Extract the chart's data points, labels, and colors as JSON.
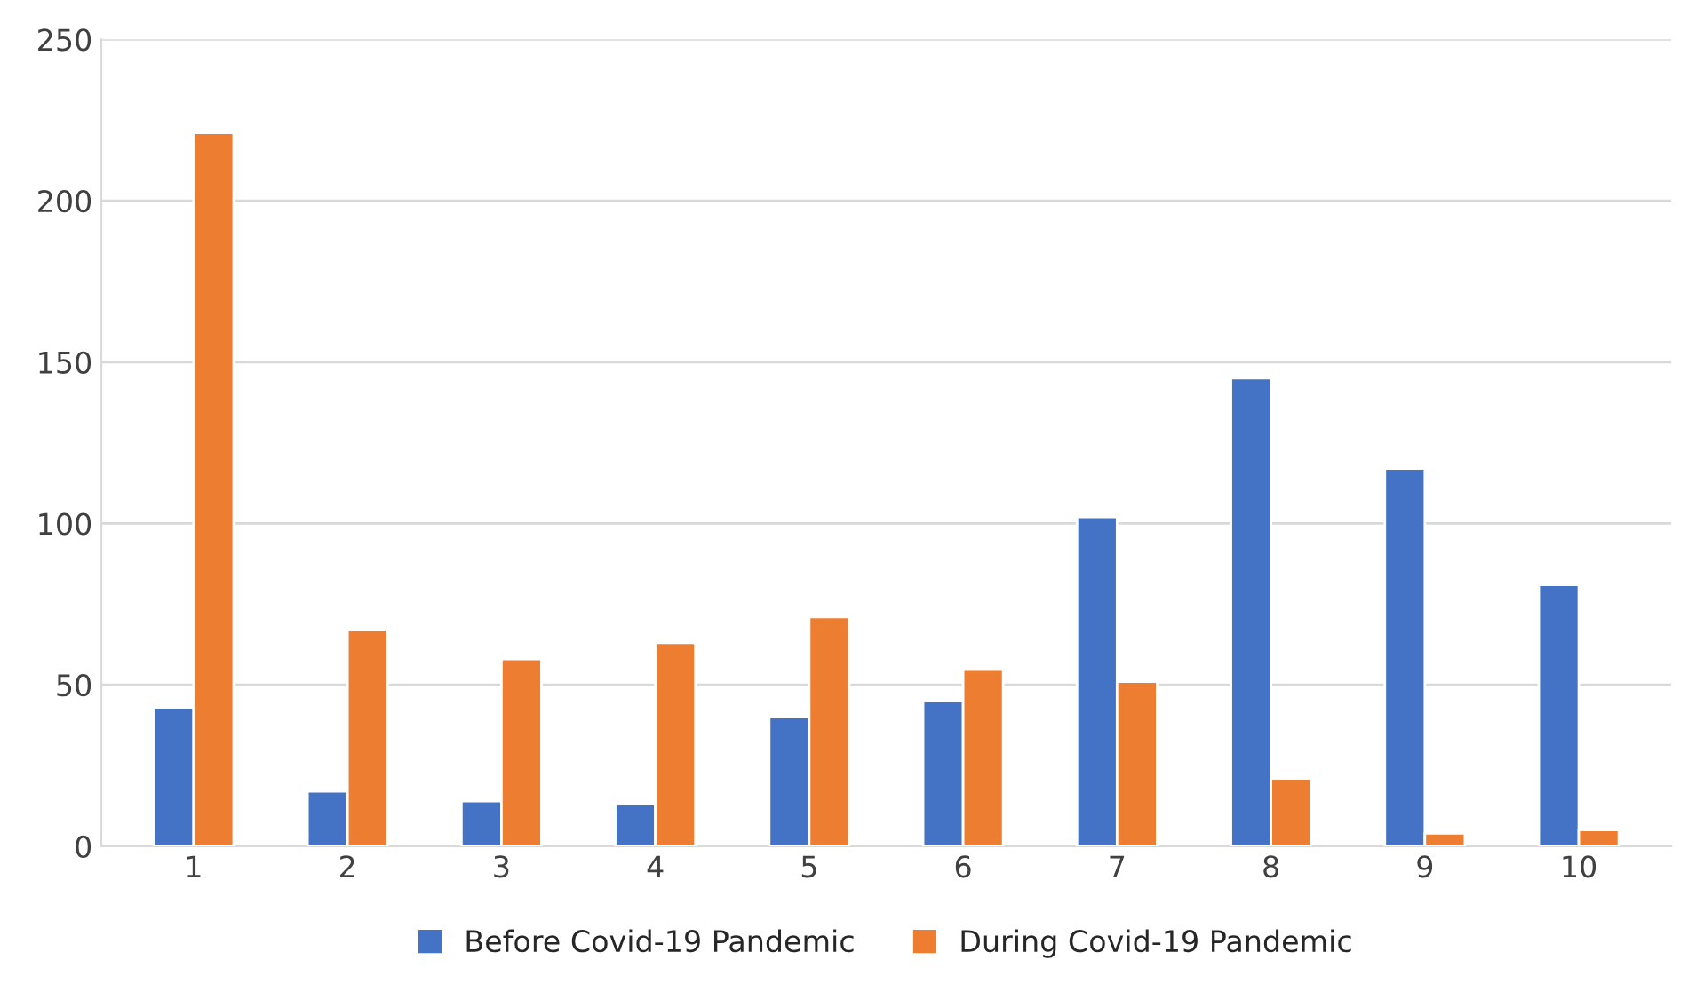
{
  "chart_data": {
    "type": "bar",
    "categories": [
      "1",
      "2",
      "3",
      "4",
      "5",
      "6",
      "7",
      "8",
      "9",
      "10"
    ],
    "series": [
      {
        "name": "Before Covid-19 Pandemic",
        "color": "#4472c4",
        "values": [
          43,
          17,
          14,
          13,
          40,
          45,
          102,
          145,
          117,
          81
        ]
      },
      {
        "name": "During Covid-19 Pandemic",
        "color": "#ed7d31",
        "values": [
          221,
          67,
          58,
          63,
          71,
          55,
          51,
          21,
          4,
          5
        ]
      }
    ],
    "ylim": [
      0,
      250
    ],
    "yticks": [
      0,
      50,
      100,
      150,
      200,
      250
    ],
    "grid": "y",
    "legend": "bottom"
  }
}
